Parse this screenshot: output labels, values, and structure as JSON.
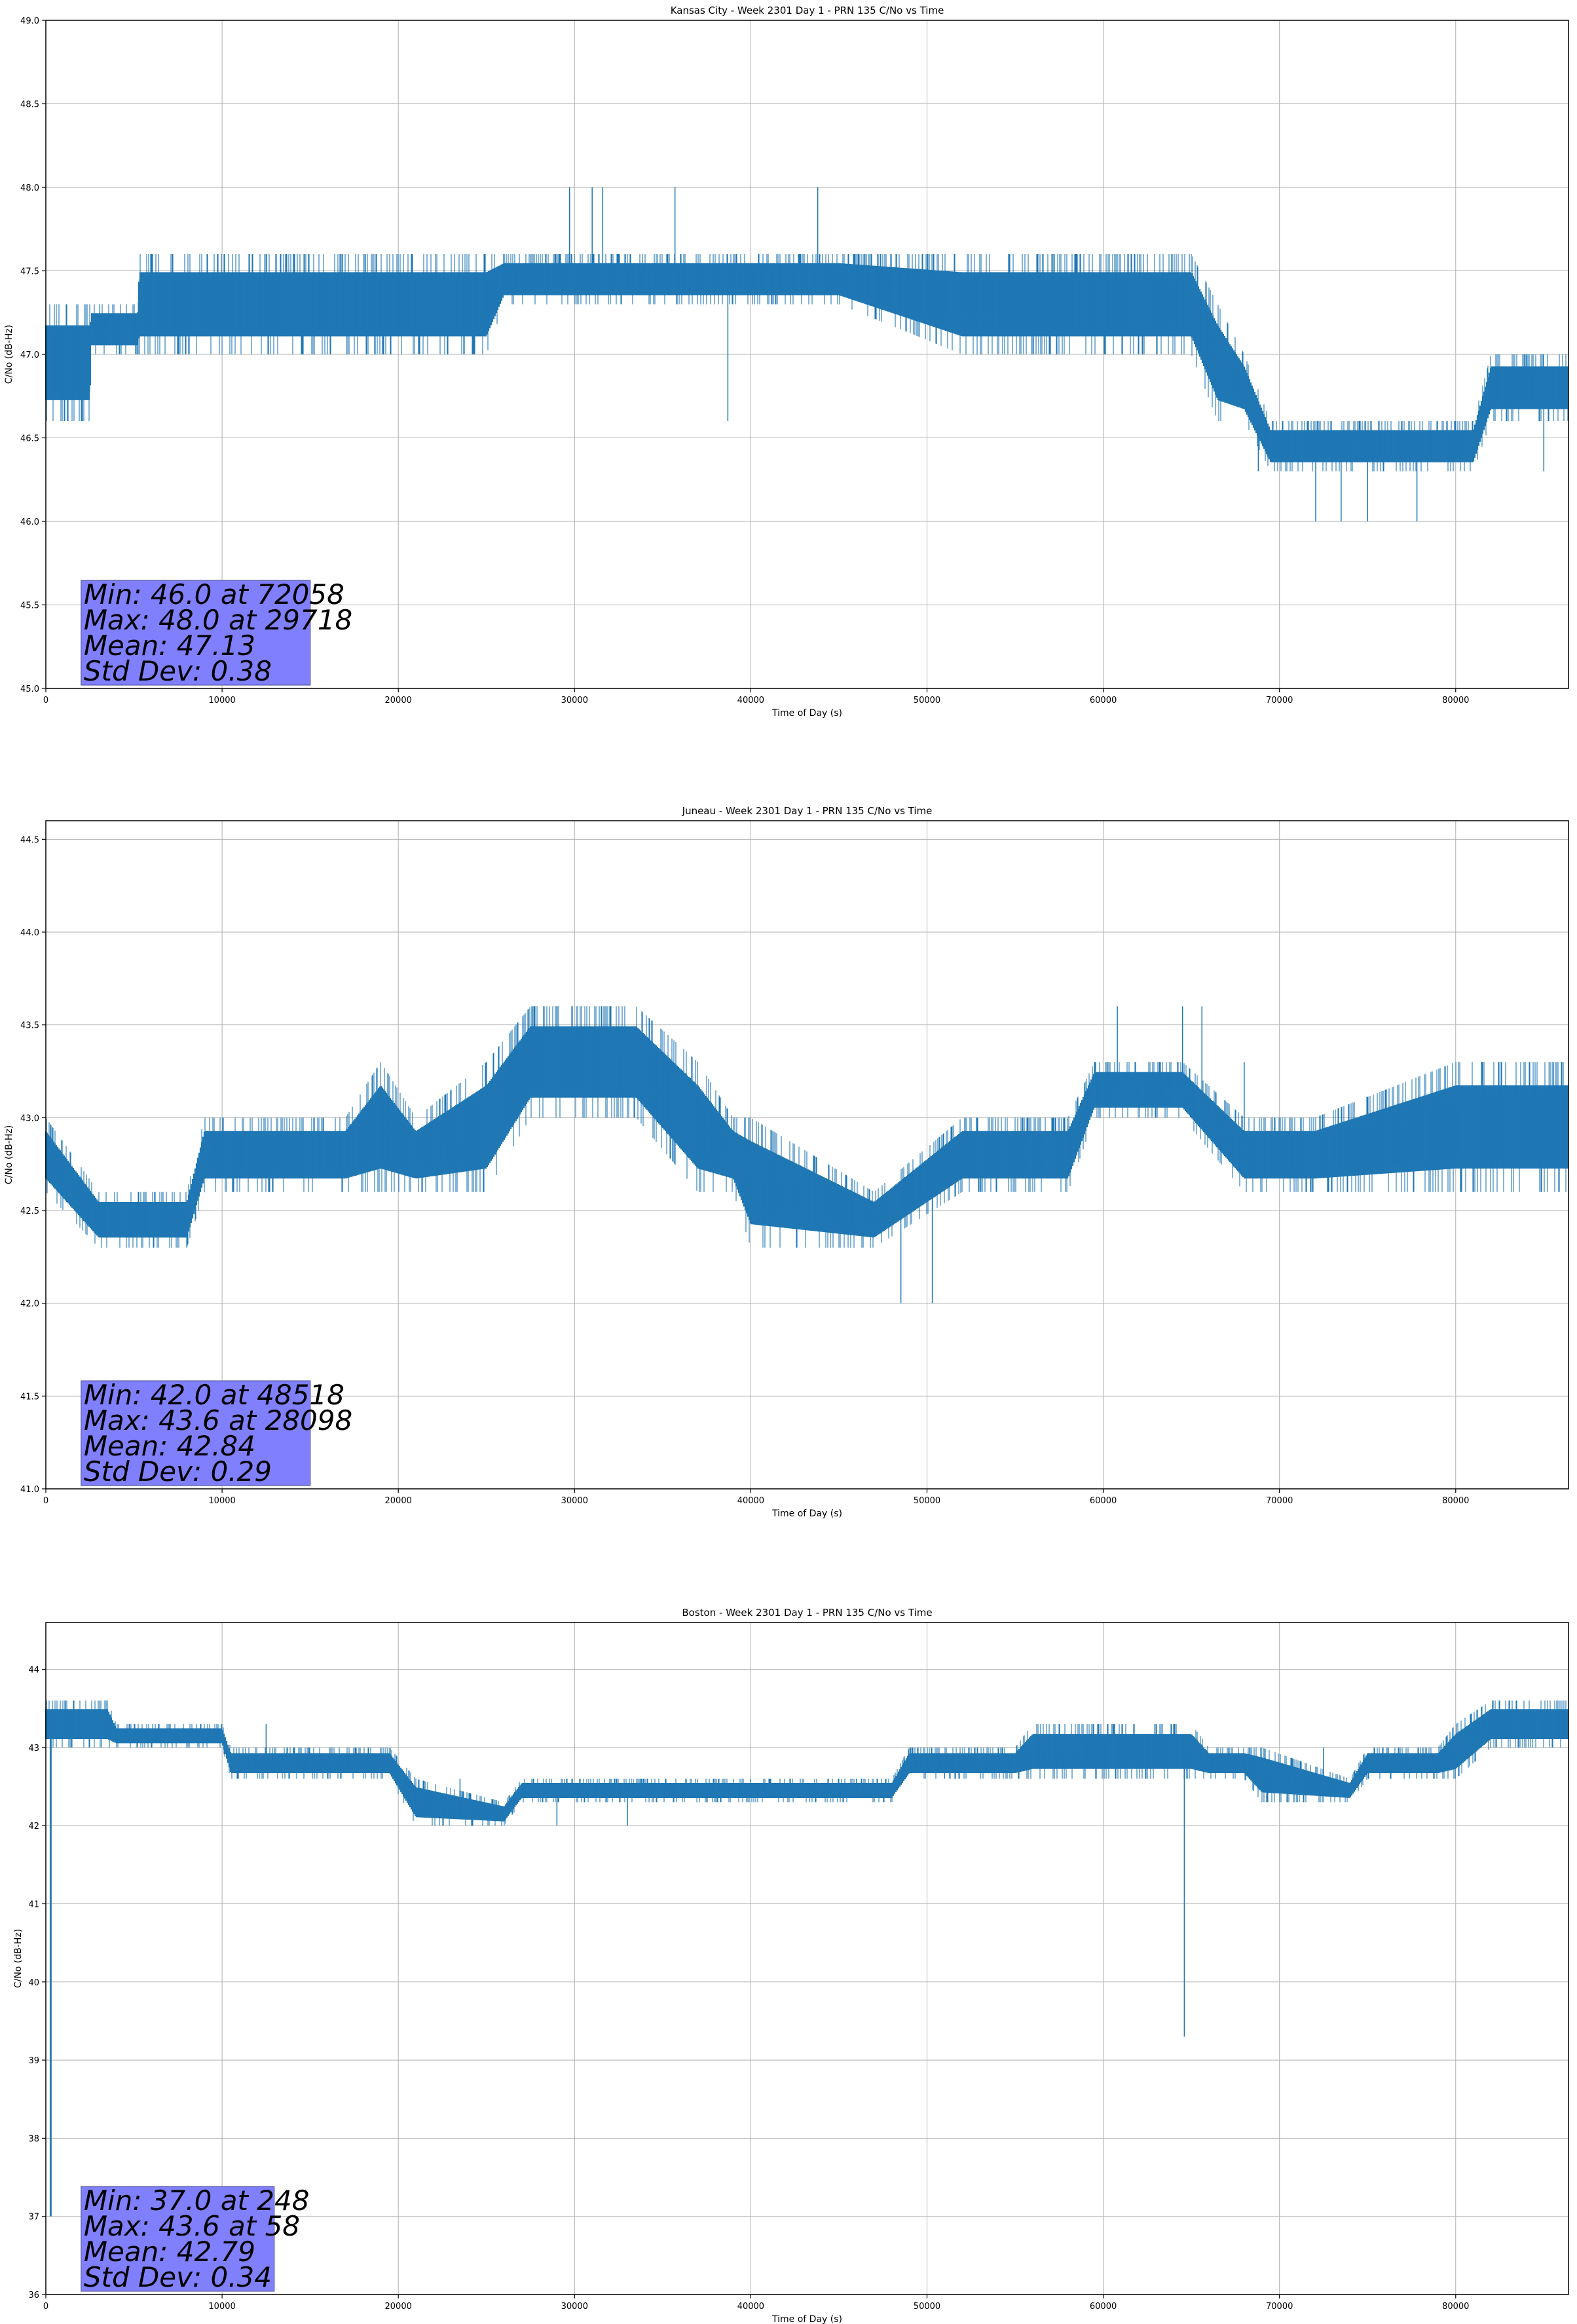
{
  "chart_data": [
    {
      "type": "line",
      "title": "Kansas City - Week 2301 Day 1 - PRN 135 C/No vs Time",
      "xlabel": "Time of Day (s)",
      "ylabel": "C/No (dB-Hz)",
      "xlim": [
        0,
        86400
      ],
      "ylim": [
        45.0,
        49.0
      ],
      "xticks": [
        0,
        10000,
        20000,
        30000,
        40000,
        50000,
        60000,
        70000,
        80000
      ],
      "yticks": [
        "45.0",
        "45.5",
        "46.0",
        "46.5",
        "47.0",
        "47.5",
        "48.0",
        "48.5",
        "49.0"
      ],
      "grid": true,
      "line_color": "#1f77b4",
      "series": [
        {
          "name": "C/No",
          "x": [
            0,
            2500,
            2600,
            5200,
            5300,
            9000,
            15000,
            25000,
            26000,
            38000,
            45000,
            52000,
            55000,
            62000,
            65000,
            66500,
            68000,
            69500,
            72000,
            75000,
            78000,
            81000,
            82000,
            84000,
            86400
          ],
          "low": [
            46.6,
            46.6,
            47.0,
            47.0,
            47.0,
            47.0,
            47.0,
            47.0,
            47.3,
            47.3,
            47.3,
            47.0,
            47.0,
            47.0,
            47.0,
            46.6,
            46.6,
            46.3,
            46.3,
            46.3,
            46.3,
            46.3,
            46.6,
            46.6,
            46.6
          ],
          "high": [
            47.3,
            47.3,
            47.3,
            47.3,
            47.6,
            47.6,
            47.6,
            47.6,
            47.6,
            47.6,
            47.6,
            47.6,
            47.6,
            47.6,
            47.6,
            47.3,
            47.0,
            46.6,
            46.6,
            46.6,
            46.6,
            46.6,
            47.0,
            47.0,
            47.0
          ]
        }
      ],
      "spikes": [
        [
          29718,
          48.0
        ],
        [
          31000,
          48.0
        ],
        [
          31600,
          48.0
        ],
        [
          35700,
          48.0
        ],
        [
          43800,
          48.0
        ],
        [
          38700,
          46.6
        ],
        [
          72058,
          46.0
        ],
        [
          73500,
          46.0
        ],
        [
          75000,
          46.0
        ],
        [
          77800,
          46.0
        ],
        [
          68800,
          46.3
        ],
        [
          85000,
          46.3
        ]
      ],
      "stats_text": [
        "Min: 46.0 at 72058",
        "Max: 48.0 at 29718",
        "Mean: 47.13",
        "Std Dev: 0.38"
      ]
    },
    {
      "type": "line",
      "title": "Juneau - Week 2301 Day 1 - PRN 135 C/No vs Time",
      "xlabel": "Time of Day (s)",
      "ylabel": "C/No (dB-Hz)",
      "xlim": [
        0,
        86400
      ],
      "ylim": [
        41.0,
        44.6
      ],
      "xticks": [
        0,
        10000,
        20000,
        30000,
        40000,
        50000,
        60000,
        70000,
        80000
      ],
      "yticks": [
        "41.0",
        "41.5",
        "42.0",
        "42.5",
        "43.0",
        "43.5",
        "44.0",
        "44.5"
      ],
      "grid": true,
      "line_color": "#1f77b4",
      "series": [
        {
          "name": "C/No",
          "x": [
            0,
            3000,
            8000,
            9000,
            17000,
            19000,
            21000,
            25000,
            27500,
            33500,
            37000,
            39000,
            40000,
            47000,
            52000,
            54000,
            58000,
            59500,
            64500,
            68000,
            72000,
            80000,
            86400
          ],
          "low": [
            42.6,
            42.3,
            42.3,
            42.6,
            42.6,
            42.6,
            42.6,
            42.6,
            43.0,
            43.0,
            42.6,
            42.6,
            42.3,
            42.3,
            42.6,
            42.6,
            42.6,
            43.0,
            43.0,
            42.6,
            42.6,
            42.6,
            42.6
          ],
          "high": [
            43.0,
            42.6,
            42.6,
            43.0,
            43.0,
            43.3,
            43.0,
            43.3,
            43.6,
            43.6,
            43.3,
            43.0,
            43.0,
            42.6,
            43.0,
            43.0,
            43.0,
            43.3,
            43.3,
            43.0,
            43.0,
            43.3,
            43.3
          ]
        }
      ],
      "spikes": [
        [
          48518,
          42.0
        ],
        [
          50300,
          42.0
        ],
        [
          60800,
          43.6
        ],
        [
          64500,
          43.6
        ],
        [
          65600,
          43.6
        ],
        [
          68000,
          43.3
        ],
        [
          85300,
          43.3
        ]
      ],
      "stats_text": [
        "Min: 42.0 at 48518",
        "Max: 43.6 at 28098",
        "Mean: 42.84",
        "Std Dev: 0.29"
      ]
    },
    {
      "type": "line",
      "title": "Boston - Week 2301 Day 1 - PRN 135 C/No vs Time",
      "xlabel": "Time of Day (s)",
      "ylabel": "C/No (dB-Hz)",
      "xlim": [
        0,
        86400
      ],
      "ylim": [
        36.0,
        44.6
      ],
      "xticks": [
        0,
        10000,
        20000,
        30000,
        40000,
        50000,
        60000,
        70000,
        80000
      ],
      "yticks": [
        "36",
        "37",
        "38",
        "39",
        "40",
        "41",
        "42",
        "43",
        "44"
      ],
      "grid": true,
      "line_color": "#1f77b4",
      "series": [
        {
          "name": "C/No",
          "x": [
            0,
            3500,
            4000,
            10000,
            10500,
            19500,
            21000,
            26000,
            27000,
            37000,
            38000,
            48000,
            49000,
            55000,
            56000,
            65000,
            66000,
            68000,
            69000,
            74000,
            75000,
            79000,
            80000,
            82000,
            86400
          ],
          "low": [
            43.0,
            43.0,
            43.0,
            43.0,
            42.6,
            42.6,
            42.0,
            42.0,
            42.3,
            42.3,
            42.3,
            42.3,
            42.6,
            42.6,
            42.6,
            42.6,
            42.6,
            42.6,
            42.3,
            42.3,
            42.6,
            42.6,
            42.6,
            43.0,
            43.0
          ],
          "high": [
            43.6,
            43.6,
            43.3,
            43.3,
            43.0,
            43.0,
            42.6,
            42.3,
            42.6,
            42.6,
            42.6,
            42.6,
            43.0,
            43.0,
            43.3,
            43.3,
            43.0,
            43.0,
            43.0,
            42.6,
            43.0,
            43.0,
            43.3,
            43.6,
            43.6
          ]
        }
      ],
      "spikes": [
        [
          248,
          37.0
        ],
        [
          300,
          37.0
        ],
        [
          64600,
          39.3
        ],
        [
          12500,
          43.3
        ],
        [
          23500,
          42.6
        ],
        [
          29000,
          42.0
        ],
        [
          33000,
          42.0
        ],
        [
          46000,
          42.6
        ],
        [
          51000,
          42.6
        ],
        [
          72500,
          43.0
        ]
      ],
      "stats_text": [
        "Min: 37.0 at 248",
        "Max: 43.6 at 58",
        "Mean: 42.79",
        "Std Dev: 0.34"
      ]
    }
  ]
}
